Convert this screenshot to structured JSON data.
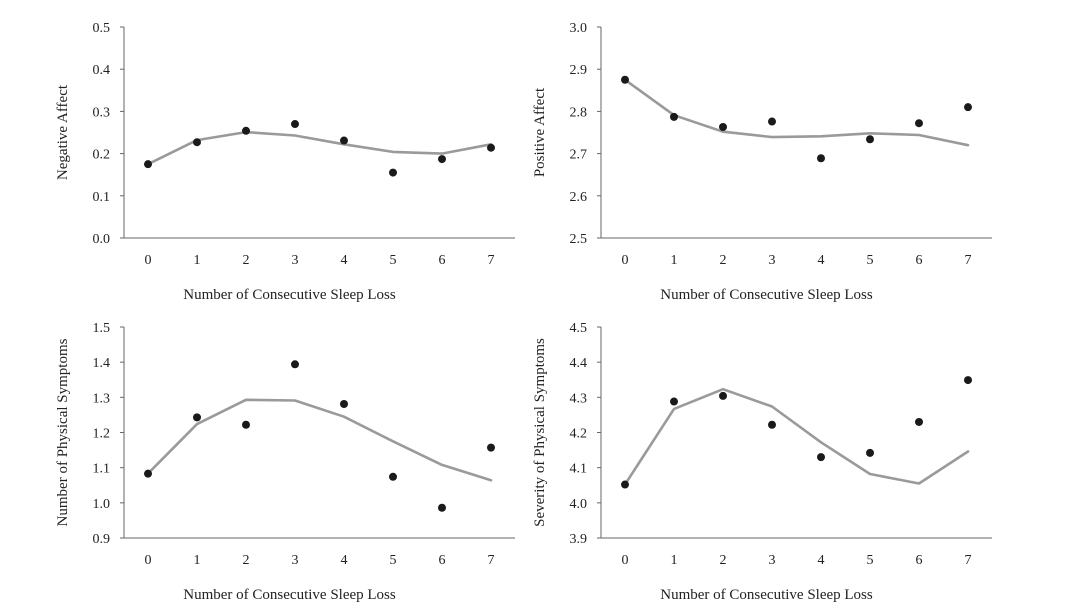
{
  "chart_data": [
    {
      "type": "line",
      "title": "",
      "xlabel": "Number of Consecutive Sleep Loss",
      "ylabel": "Negative Affect",
      "x": [
        0,
        1,
        2,
        3,
        4,
        5,
        6,
        7
      ],
      "ylim": [
        0.0,
        0.5
      ],
      "yticks": [
        "0.0",
        "0.1",
        "0.2",
        "0.3",
        "0.4",
        "0.5"
      ],
      "series": [
        {
          "kind": "line",
          "values": [
            0.175,
            0.232,
            0.251,
            0.243,
            0.222,
            0.204,
            0.2,
            0.222
          ]
        },
        {
          "kind": "scatter",
          "values": [
            0.175,
            0.227,
            0.254,
            0.27,
            0.231,
            0.155,
            0.187,
            0.214
          ]
        }
      ],
      "grid": false,
      "colors": {
        "line": "#9a9a9a",
        "points": "#1a1a1a"
      }
    },
    {
      "type": "line",
      "title": "",
      "xlabel": "Number of Consecutive Sleep Loss",
      "ylabel": "Positive Affect",
      "x": [
        0,
        1,
        2,
        3,
        4,
        5,
        6,
        7
      ],
      "ylim": [
        2.5,
        3.0
      ],
      "yticks": [
        "2.5",
        "2.6",
        "2.7",
        "2.8",
        "2.9",
        "3.0"
      ],
      "series": [
        {
          "kind": "line",
          "values": [
            2.875,
            2.791,
            2.752,
            2.739,
            2.741,
            2.748,
            2.744,
            2.72
          ]
        },
        {
          "kind": "scatter",
          "values": [
            2.875,
            2.787,
            2.763,
            2.776,
            2.689,
            2.734,
            2.772,
            2.81
          ]
        }
      ],
      "grid": false,
      "colors": {
        "line": "#9a9a9a",
        "points": "#1a1a1a"
      }
    },
    {
      "type": "line",
      "title": "",
      "xlabel": "Number of Consecutive Sleep Loss",
      "ylabel": "Number of Physical Symptoms",
      "x": [
        0,
        1,
        2,
        3,
        4,
        5,
        6,
        7
      ],
      "ylim": [
        0.9,
        1.5
      ],
      "yticks": [
        "0.9",
        "1.0",
        "1.1",
        "1.2",
        "1.3",
        "1.4",
        "1.5"
      ],
      "series": [
        {
          "kind": "line",
          "values": [
            1.083,
            1.224,
            1.293,
            1.291,
            1.245,
            1.175,
            1.108,
            1.064
          ]
        },
        {
          "kind": "scatter",
          "values": [
            1.083,
            1.243,
            1.222,
            1.394,
            1.281,
            1.074,
            0.986,
            1.157
          ]
        }
      ],
      "grid": false,
      "colors": {
        "line": "#9a9a9a",
        "points": "#1a1a1a"
      }
    },
    {
      "type": "line",
      "title": "",
      "xlabel": "Number of Consecutive Sleep Loss",
      "ylabel": "Severity of Physical Symptoms",
      "x": [
        0,
        1,
        2,
        3,
        4,
        5,
        6,
        7
      ],
      "ylim": [
        3.9,
        4.5
      ],
      "yticks": [
        "3.9",
        "4.0",
        "4.1",
        "4.2",
        "4.3",
        "4.4",
        "4.5"
      ],
      "series": [
        {
          "kind": "line",
          "values": [
            4.052,
            4.267,
            4.323,
            4.274,
            4.172,
            4.082,
            4.055,
            4.146
          ]
        },
        {
          "kind": "scatter",
          "values": [
            4.052,
            4.288,
            4.304,
            4.222,
            4.13,
            4.142,
            4.23,
            4.349
          ]
        }
      ],
      "grid": false,
      "colors": {
        "line": "#9a9a9a",
        "points": "#1a1a1a"
      }
    }
  ]
}
